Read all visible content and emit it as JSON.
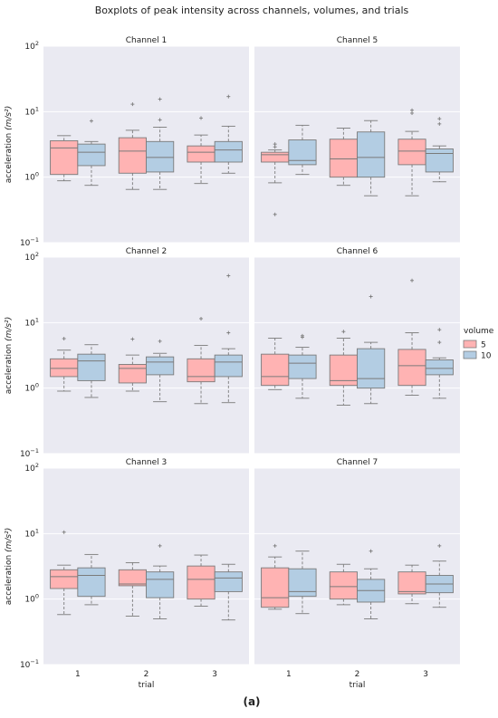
{
  "title": "Boxplots of peak intensity across channels, volumes, and trials",
  "panel_label": "(a)",
  "colors": {
    "volume_5": "#ffb3b3",
    "volume_10": "#b3cde3",
    "panel_bg": "#eaeaf2",
    "grid": "#ffffff",
    "line": "#7a7a7a"
  },
  "chart_data": {
    "type": "boxplot",
    "yscale": "log",
    "ylim": [
      0.1,
      100
    ],
    "yticks": [
      {
        "value": 0.1,
        "base": "10",
        "exp": "−1"
      },
      {
        "value": 1,
        "base": "10",
        "exp": "0"
      },
      {
        "value": 10,
        "base": "10",
        "exp": "1"
      },
      {
        "value": 100,
        "base": "10",
        "exp": "2"
      }
    ],
    "ylabel": "acceleration",
    "ylabel_unit": "(m/s²)",
    "xlabel": "trial",
    "categories": [
      "1",
      "2",
      "3"
    ],
    "legend": {
      "title": "volume",
      "entries": [
        "5",
        "10"
      ]
    },
    "panels": [
      {
        "title": "Channel 1",
        "row": 0,
        "col": 0,
        "boxes": [
          {
            "trial": "1",
            "volume": "5",
            "whislo": 0.88,
            "q1": 1.1,
            "median": 2.8,
            "q3": 3.6,
            "whishi": 4.3,
            "fliers": []
          },
          {
            "trial": "1",
            "volume": "10",
            "whislo": 0.75,
            "q1": 1.5,
            "median": 2.4,
            "q3": 3.2,
            "whishi": 3.5,
            "fliers": [
              7.2
            ]
          },
          {
            "trial": "2",
            "volume": "5",
            "whislo": 0.65,
            "q1": 1.15,
            "median": 2.5,
            "q3": 4.0,
            "whishi": 5.2,
            "fliers": [
              13.0
            ]
          },
          {
            "trial": "2",
            "volume": "10",
            "whislo": 0.65,
            "q1": 1.2,
            "median": 2.0,
            "q3": 3.5,
            "whishi": 5.8,
            "fliers": [
              7.5,
              15.5
            ]
          },
          {
            "trial": "3",
            "volume": "5",
            "whislo": 0.8,
            "q1": 1.7,
            "median": 2.4,
            "q3": 3.0,
            "whishi": 4.4,
            "fliers": [
              8.0
            ]
          },
          {
            "trial": "3",
            "volume": "10",
            "whislo": 1.15,
            "q1": 1.7,
            "median": 2.6,
            "q3": 3.5,
            "whishi": 6.0,
            "fliers": [
              17.0
            ]
          }
        ]
      },
      {
        "title": "Channel 5",
        "row": 0,
        "col": 1,
        "boxes": [
          {
            "trial": "1",
            "volume": "5",
            "whislo": 0.82,
            "q1": 1.7,
            "median": 2.2,
            "q3": 2.4,
            "whishi": 2.6,
            "fliers": [
              3.2,
              2.9,
              0.27
            ]
          },
          {
            "trial": "1",
            "volume": "10",
            "whislo": 1.1,
            "q1": 1.55,
            "median": 1.8,
            "q3": 3.7,
            "whishi": 6.2,
            "fliers": []
          },
          {
            "trial": "2",
            "volume": "5",
            "whislo": 0.75,
            "q1": 1.0,
            "median": 1.9,
            "q3": 3.8,
            "whishi": 5.6,
            "fliers": []
          },
          {
            "trial": "2",
            "volume": "10",
            "whislo": 0.52,
            "q1": 1.0,
            "median": 2.0,
            "q3": 4.9,
            "whishi": 7.3,
            "fliers": []
          },
          {
            "trial": "3",
            "volume": "5",
            "whislo": 0.52,
            "q1": 1.55,
            "median": 2.5,
            "q3": 3.8,
            "whishi": 5.0,
            "fliers": [
              9.5,
              10.5
            ]
          },
          {
            "trial": "3",
            "volume": "10",
            "whislo": 0.85,
            "q1": 1.2,
            "median": 2.3,
            "q3": 2.7,
            "whishi": 3.0,
            "fliers": [
              6.5,
              7.8
            ]
          }
        ]
      },
      {
        "title": "Channel 2",
        "row": 1,
        "col": 0,
        "boxes": [
          {
            "trial": "1",
            "volume": "5",
            "whislo": 0.9,
            "q1": 1.5,
            "median": 2.0,
            "q3": 2.8,
            "whishi": 3.8,
            "fliers": [
              5.7
            ]
          },
          {
            "trial": "1",
            "volume": "10",
            "whislo": 0.72,
            "q1": 1.3,
            "median": 2.6,
            "q3": 3.3,
            "whishi": 4.6,
            "fliers": []
          },
          {
            "trial": "2",
            "volume": "5",
            "whislo": 0.9,
            "q1": 1.2,
            "median": 2.0,
            "q3": 2.3,
            "whishi": 3.2,
            "fliers": [
              5.6
            ]
          },
          {
            "trial": "2",
            "volume": "10",
            "whislo": 0.62,
            "q1": 1.6,
            "median": 2.5,
            "q3": 3.0,
            "whishi": 3.4,
            "fliers": [
              5.2
            ]
          },
          {
            "trial": "3",
            "volume": "5",
            "whislo": 0.58,
            "q1": 1.25,
            "median": 1.5,
            "q3": 2.8,
            "whishi": 4.5,
            "fliers": [
              11.5
            ]
          },
          {
            "trial": "3",
            "volume": "10",
            "whislo": 0.6,
            "q1": 1.5,
            "median": 2.5,
            "q3": 3.2,
            "whishi": 4.0,
            "fliers": [
              7.0,
              52.0
            ]
          }
        ]
      },
      {
        "title": "Channel 6",
        "row": 1,
        "col": 1,
        "boxes": [
          {
            "trial": "1",
            "volume": "5",
            "whislo": 0.95,
            "q1": 1.1,
            "median": 1.5,
            "q3": 3.3,
            "whishi": 5.8,
            "fliers": []
          },
          {
            "trial": "1",
            "volume": "10",
            "whislo": 0.7,
            "q1": 1.4,
            "median": 2.4,
            "q3": 3.2,
            "whishi": 4.2,
            "fliers": [
              6.0,
              6.3
            ]
          },
          {
            "trial": "2",
            "volume": "5",
            "whislo": 0.55,
            "q1": 1.1,
            "median": 1.3,
            "q3": 3.2,
            "whishi": 5.8,
            "fliers": [
              7.3
            ]
          },
          {
            "trial": "2",
            "volume": "10",
            "whislo": 0.58,
            "q1": 1.0,
            "median": 1.4,
            "q3": 4.0,
            "whishi": 5.0,
            "fliers": [
              25.0
            ]
          },
          {
            "trial": "3",
            "volume": "5",
            "whislo": 0.78,
            "q1": 1.1,
            "median": 2.2,
            "q3": 3.9,
            "whishi": 7.0,
            "fliers": [
              44.0
            ]
          },
          {
            "trial": "3",
            "volume": "10",
            "whislo": 0.7,
            "q1": 1.6,
            "median": 2.0,
            "q3": 2.7,
            "whishi": 2.9,
            "fliers": [
              5.0,
              7.8
            ]
          }
        ]
      },
      {
        "title": "Channel 3",
        "row": 2,
        "col": 0,
        "boxes": [
          {
            "trial": "1",
            "volume": "5",
            "whislo": 0.58,
            "q1": 1.45,
            "median": 2.2,
            "q3": 2.8,
            "whishi": 3.3,
            "fliers": [
              10.5
            ]
          },
          {
            "trial": "1",
            "volume": "10",
            "whislo": 0.82,
            "q1": 1.1,
            "median": 2.3,
            "q3": 3.0,
            "whishi": 4.8,
            "fliers": []
          },
          {
            "trial": "2",
            "volume": "5",
            "whislo": 0.55,
            "q1": 1.6,
            "median": 1.7,
            "q3": 2.8,
            "whishi": 3.6,
            "fliers": []
          },
          {
            "trial": "2",
            "volume": "10",
            "whislo": 0.5,
            "q1": 1.05,
            "median": 2.0,
            "q3": 2.6,
            "whishi": 3.2,
            "fliers": [
              6.5
            ]
          },
          {
            "trial": "3",
            "volume": "5",
            "whislo": 0.78,
            "q1": 1.0,
            "median": 2.0,
            "q3": 3.2,
            "whishi": 4.7,
            "fliers": []
          },
          {
            "trial": "3",
            "volume": "10",
            "whislo": 0.48,
            "q1": 1.3,
            "median": 2.1,
            "q3": 2.6,
            "whishi": 3.4,
            "fliers": []
          }
        ]
      },
      {
        "title": "Channel 7",
        "row": 2,
        "col": 1,
        "boxes": [
          {
            "trial": "1",
            "volume": "5",
            "whislo": 0.7,
            "q1": 0.75,
            "median": 1.05,
            "q3": 3.0,
            "whishi": 4.4,
            "fliers": [
              6.5
            ]
          },
          {
            "trial": "1",
            "volume": "10",
            "whislo": 0.6,
            "q1": 1.1,
            "median": 1.3,
            "q3": 2.9,
            "whishi": 5.4,
            "fliers": []
          },
          {
            "trial": "2",
            "volume": "5",
            "whislo": 0.82,
            "q1": 1.0,
            "median": 1.55,
            "q3": 2.6,
            "whishi": 3.4,
            "fliers": []
          },
          {
            "trial": "2",
            "volume": "10",
            "whislo": 0.5,
            "q1": 0.9,
            "median": 1.35,
            "q3": 2.0,
            "whishi": 2.9,
            "fliers": [
              5.4
            ]
          },
          {
            "trial": "3",
            "volume": "5",
            "whislo": 0.85,
            "q1": 1.2,
            "median": 1.3,
            "q3": 2.6,
            "whishi": 3.3,
            "fliers": []
          },
          {
            "trial": "3",
            "volume": "10",
            "whislo": 0.75,
            "q1": 1.25,
            "median": 1.7,
            "q3": 2.3,
            "whishi": 3.8,
            "fliers": [
              6.5
            ]
          }
        ]
      }
    ]
  }
}
